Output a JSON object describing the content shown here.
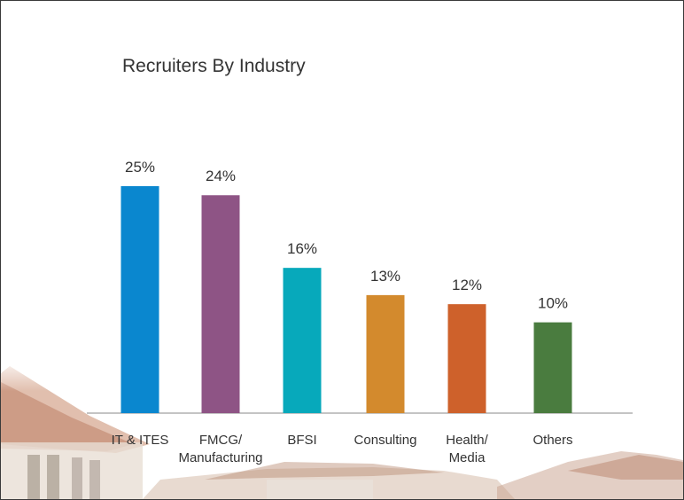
{
  "chart_data": {
    "type": "bar",
    "title": "Recruiters By Industry",
    "categories": [
      "IT & ITES",
      "FMCG/ Manufacturing",
      "BFSI",
      "Consulting",
      "Health/ Media",
      "Others"
    ],
    "category_lines": [
      [
        "IT & ITES"
      ],
      [
        "FMCG/",
        "Manufacturing"
      ],
      [
        "BFSI"
      ],
      [
        "Consulting"
      ],
      [
        "Health/",
        "Media"
      ],
      [
        "Others"
      ]
    ],
    "values": [
      25,
      24,
      16,
      13,
      12,
      10
    ],
    "value_labels": [
      "25%",
      "24%",
      "16%",
      "13%",
      "12%",
      "10%"
    ],
    "colors": [
      "#0a87cf",
      "#8e5485",
      "#07a9bb",
      "#d38a2d",
      "#ce612b",
      "#4a7c3f"
    ],
    "ylim": [
      0,
      30
    ],
    "grid": false,
    "legend": "none"
  }
}
